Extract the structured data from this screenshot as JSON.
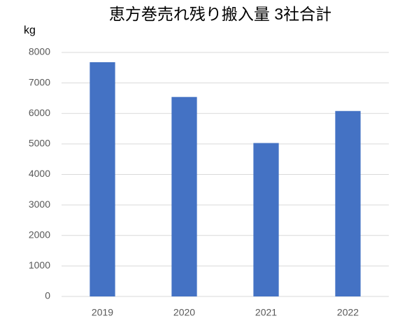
{
  "chart_data": {
    "type": "bar",
    "title": "恵方巻売れ残り搬入量 3社合計",
    "y_label": "kg",
    "categories": [
      "2019",
      "2020",
      "2021",
      "2022"
    ],
    "values": [
      7680,
      6540,
      5030,
      6080
    ],
    "color": "#4472c4",
    "ylim": [
      0,
      8000
    ],
    "yticks": [
      0,
      1000,
      2000,
      3000,
      4000,
      5000,
      6000,
      7000,
      8000
    ],
    "grid": true
  }
}
